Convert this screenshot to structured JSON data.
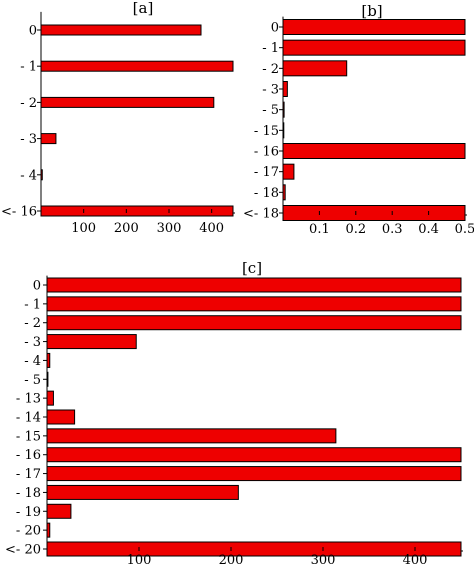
{
  "chart_data": [
    {
      "type": "bar",
      "orientation": "horizontal",
      "title": "[a]",
      "categories": [
        "0",
        "- 1",
        "- 2",
        "- 3",
        "- 4",
        "<- 16"
      ],
      "values": [
        375,
        450,
        405,
        35,
        3,
        450
      ],
      "xlim": [
        0,
        450
      ],
      "xticks": [
        "100",
        "200",
        "300",
        "400"
      ],
      "xtick_values": [
        100,
        200,
        300,
        400
      ]
    },
    {
      "type": "bar",
      "orientation": "horizontal",
      "title": "[b]",
      "categories": [
        "0",
        "- 1",
        "- 2",
        "- 3",
        "- 5",
        "- 15",
        "- 16",
        "- 17",
        "- 18",
        "<- 18"
      ],
      "values": [
        0.5,
        0.5,
        0.175,
        0.012,
        0.003,
        0.002,
        0.5,
        0.03,
        0.006,
        0.5
      ],
      "xlim": [
        0,
        0.5
      ],
      "xticks": [
        "0.1",
        "0.2",
        "0.3",
        "0.4",
        "0.5"
      ],
      "xtick_values": [
        0.1,
        0.2,
        0.3,
        0.4,
        0.5
      ]
    },
    {
      "type": "bar",
      "orientation": "horizontal",
      "title": "[c]",
      "categories": [
        "0",
        "- 1",
        "- 2",
        "- 3",
        "- 4",
        "- 5",
        "- 13",
        "- 14",
        "- 15",
        "- 16",
        "- 17",
        "- 18",
        "- 19",
        "- 20",
        "<- 20"
      ],
      "values": [
        450,
        450,
        450,
        97,
        3,
        1,
        7,
        30,
        314,
        450,
        450,
        208,
        26,
        3,
        450
      ],
      "xlim": [
        0,
        450
      ],
      "xticks": [
        "100",
        "200",
        "300",
        "400"
      ],
      "xtick_values": [
        100,
        200,
        300,
        400
      ]
    }
  ]
}
